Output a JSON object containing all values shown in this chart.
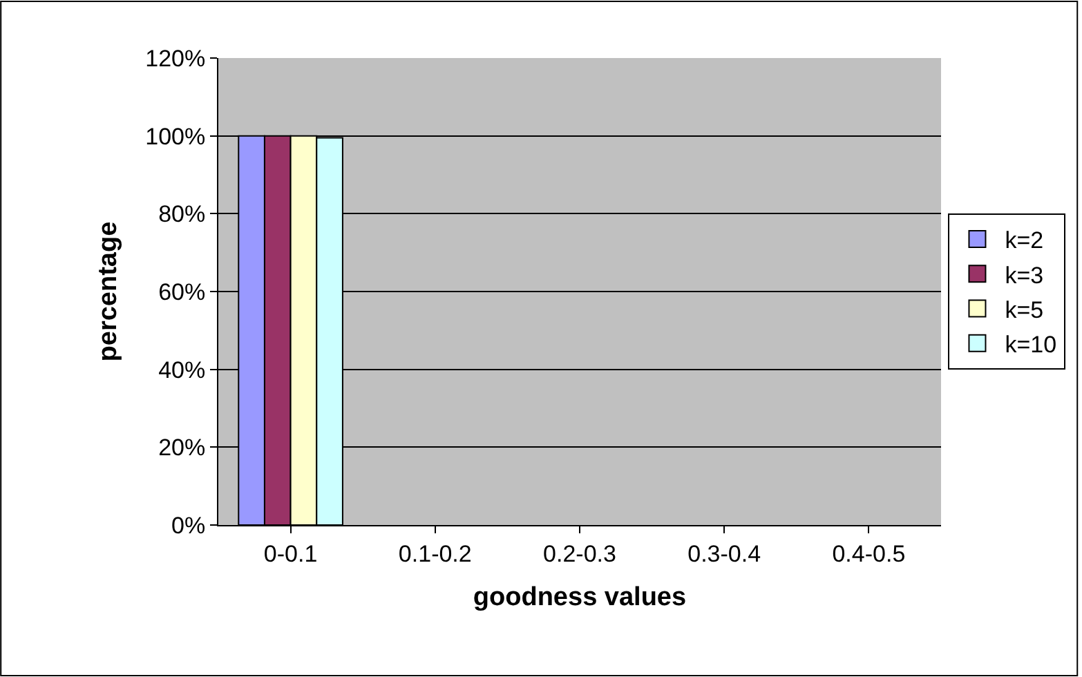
{
  "chart_data": {
    "type": "bar",
    "xlabel": "goodness values",
    "ylabel": "percentage",
    "categories": [
      "0-0.1",
      "0.1-0.2",
      "0.2-0.3",
      "0.3-0.4",
      "0.4-0.5"
    ],
    "series": [
      {
        "name": "k=2",
        "color": "#9999ff",
        "values": [
          100,
          0,
          0,
          0,
          0
        ]
      },
      {
        "name": "k=3",
        "color": "#993366",
        "values": [
          100,
          0,
          0,
          0,
          0
        ]
      },
      {
        "name": "k=5",
        "color": "#ffffcc",
        "values": [
          100,
          0,
          0,
          0,
          0
        ]
      },
      {
        "name": "k=10",
        "color": "#ccffff",
        "values": [
          99.5,
          0,
          0,
          0,
          0
        ]
      }
    ],
    "ylim": [
      0,
      120
    ],
    "yticks": [
      {
        "value": 0,
        "label": "0%"
      },
      {
        "value": 20,
        "label": "20%"
      },
      {
        "value": 40,
        "label": "40%"
      },
      {
        "value": 60,
        "label": "60%"
      },
      {
        "value": 80,
        "label": "80%"
      },
      {
        "value": 100,
        "label": "100%"
      },
      {
        "value": 120,
        "label": "120%"
      }
    ],
    "grid": "y",
    "legend": "right"
  }
}
